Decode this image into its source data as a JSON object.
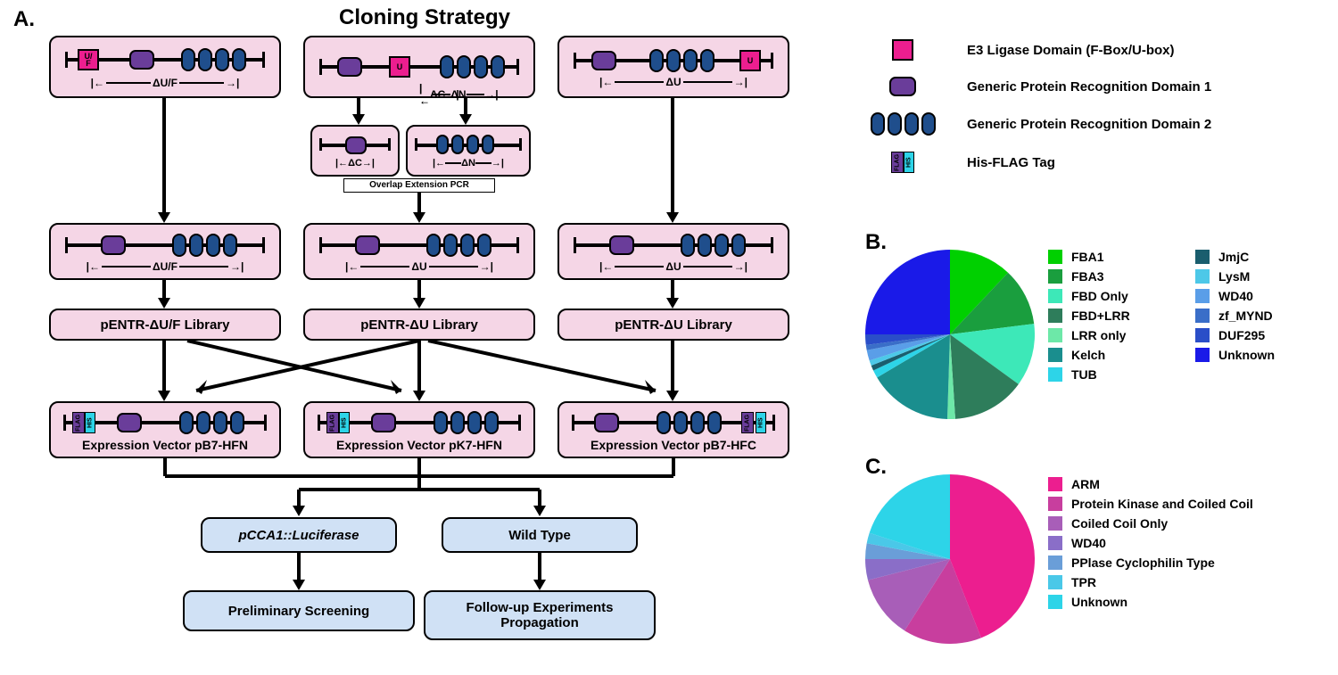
{
  "panels": {
    "A": "A.",
    "B": "B.",
    "C": "C."
  },
  "title": "Cloning Strategy",
  "constructs": {
    "delta_uf": "ΔU/F",
    "delta_c": "ΔC",
    "delta_n": "ΔN",
    "delta_u": "ΔU",
    "uf_label": "U/\nF",
    "u_label": "U",
    "overlap_pcr": "Overlap Extension PCR"
  },
  "library_labels": {
    "pENTR_UF": "pENTR-ΔU/F Library",
    "pENTR_U": "pENTR-ΔU Library"
  },
  "expression_labels": {
    "pB7_HFN": "Expression Vector pB7-HFN",
    "pK7_HFN": "Expression Vector pK7-HFN",
    "pB7_HFC": "Expression Vector pB7-HFC"
  },
  "outputs": {
    "luciferase": "pCCA1::Luciferase",
    "wild_type": "Wild Type",
    "preliminary": "Preliminary Screening",
    "followup": "Follow-up Experiments\nPropagation"
  },
  "legend": {
    "e3": "E3 Ligase Domain (F-Box/U-box)",
    "prd1": "Generic Protein Recognition Domain 1",
    "prd2": "Generic Protein Recognition Domain 2",
    "his_flag": "His-FLAG Tag",
    "flag_text": "FLAG",
    "his_text": "HIS"
  },
  "colors": {
    "pink_box": "#f5d6e6",
    "blue_box": "#d0e1f5",
    "e3_domain": "#ec1e8f",
    "prd1": "#6a3d9a",
    "prd2": "#1f4e8c",
    "his_tag": "#2dd4e8",
    "flag_tag": "#6a3d9a"
  },
  "pie_B": {
    "slices": [
      {
        "label": "FBA1",
        "value": 12,
        "color": "#00d000"
      },
      {
        "label": "FBA3",
        "value": 11,
        "color": "#1a9e3e"
      },
      {
        "label": "FBD Only",
        "value": 12,
        "color": "#3de8b8"
      },
      {
        "label": "FBD+LRR",
        "value": 14,
        "color": "#2e7d5b"
      },
      {
        "label": "LRR only",
        "value": 1.5,
        "color": "#6de8a8"
      },
      {
        "label": "Kelch",
        "value": 16,
        "color": "#1a8e8e"
      },
      {
        "label": "TUB",
        "value": 1.5,
        "color": "#2dd4e8"
      },
      {
        "label": "JmjC",
        "value": 1,
        "color": "#1a5e6e"
      },
      {
        "label": "LysM",
        "value": 1,
        "color": "#4dc8e8"
      },
      {
        "label": "WD40",
        "value": 2,
        "color": "#5a9ee8"
      },
      {
        "label": "zf_MYND",
        "value": 1,
        "color": "#3a6ec8"
      },
      {
        "label": "DUF295",
        "value": 2,
        "color": "#2a4ec8"
      },
      {
        "label": "Unknown",
        "value": 25,
        "color": "#1a1ae8"
      }
    ]
  },
  "pie_C": {
    "slices": [
      {
        "label": "ARM",
        "value": 44,
        "color": "#ec1e8f"
      },
      {
        "label": "Protein Kinase and Coiled Coil",
        "value": 15,
        "color": "#c83e9e"
      },
      {
        "label": "Coiled Coil Only",
        "value": 12,
        "color": "#a85eb8"
      },
      {
        "label": "WD40",
        "value": 4,
        "color": "#8a6ec8"
      },
      {
        "label": "PPlase Cyclophilin Type",
        "value": 3,
        "color": "#6a9ed8"
      },
      {
        "label": "TPR",
        "value": 2,
        "color": "#4ac8e8"
      },
      {
        "label": "Unknown",
        "value": 20,
        "color": "#2dd4e8"
      }
    ]
  }
}
